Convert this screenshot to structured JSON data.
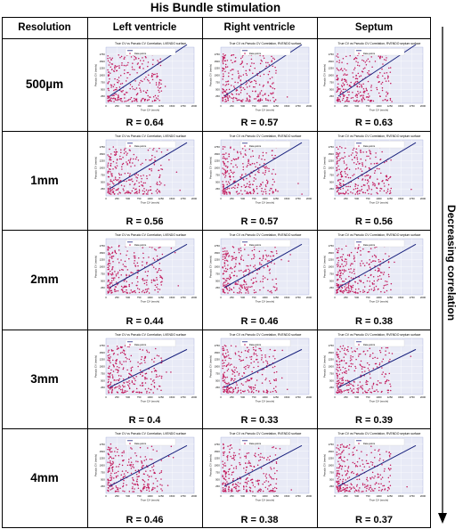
{
  "figure": {
    "title": "His Bundle stimulation",
    "corner_header": "Resolution",
    "columns": [
      "Left ventricle",
      "Right ventricle",
      "Septum"
    ],
    "side_label": "Decreasing correlation"
  },
  "plot_text": {
    "xlabel": "True CV (mm/s)",
    "ylabel": "Pseudo CV (mm/s)",
    "legend_points": "Data points",
    "ticks": [
      "0",
      "250",
      "500",
      "750",
      "1000",
      "1250",
      "1500",
      "1750",
      "2000"
    ],
    "titles": [
      "True CV vs Pseudo CV Correlation, LVENDO surface",
      "True CV vs Pseudo CV Correlation, RVENDO surface",
      "True CV vs Pseudo CV Correlation, RVENDO septum surface"
    ]
  },
  "colors": {
    "points": "#c2185b",
    "line": "#1a237e",
    "plot_bg": "#e8eaf6"
  },
  "rows": [
    {
      "resolution": "500µm",
      "r_labels": [
        "R = 0.64",
        "R = 0.57",
        "R = 0.63"
      ]
    },
    {
      "resolution": "1mm",
      "r_labels": [
        "R = 0.56",
        "R = 0.57",
        "R = 0.56"
      ]
    },
    {
      "resolution": "2mm",
      "r_labels": [
        "R = 0.44",
        "R = 0.46",
        "R = 0.38"
      ]
    },
    {
      "resolution": "3mm",
      "r_labels": [
        "R = 0.4",
        "R = 0.33",
        "R = 0.39"
      ]
    },
    {
      "resolution": "4mm",
      "r_labels": [
        "R = 0.46",
        "R = 0.38",
        "R = 0.37"
      ]
    }
  ]
}
